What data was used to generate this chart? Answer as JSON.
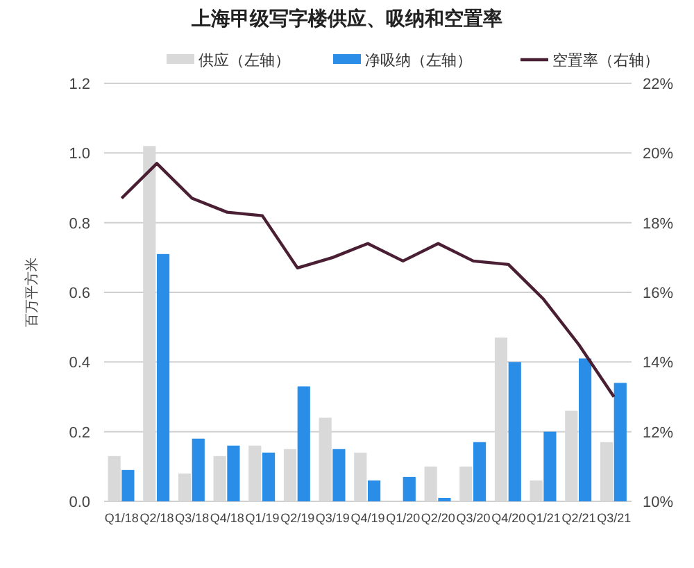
{
  "chart_data": {
    "type": "bar",
    "title": "上海甲级写字楼供应、吸纳和空置率",
    "ylabel": "百万平方米",
    "categories": [
      "Q1/18",
      "Q2/18",
      "Q3/18",
      "Q4/18",
      "Q1/19",
      "Q2/19",
      "Q3/19",
      "Q4/19",
      "Q1/20",
      "Q2/20",
      "Q3/20",
      "Q4/20",
      "Q1/21",
      "Q2/21",
      "Q3/21"
    ],
    "series": [
      {
        "name": "供应（左轴）",
        "color": "#d9d9d9",
        "values": [
          0.13,
          1.02,
          0.08,
          0.13,
          0.16,
          0.15,
          0.24,
          0.14,
          null,
          0.1,
          0.1,
          0.47,
          0.06,
          0.26,
          0.17
        ]
      },
      {
        "name": "净吸纳（左轴）",
        "color": "#2a8ee8",
        "values": [
          0.09,
          0.71,
          0.18,
          0.16,
          0.14,
          0.33,
          0.15,
          0.06,
          0.07,
          0.01,
          0.17,
          0.4,
          0.2,
          0.41,
          0.34
        ]
      },
      {
        "name": "空置率（右轴）",
        "type": "line",
        "axis": "y2",
        "color": "#4a1f33",
        "values": [
          18.7,
          19.7,
          18.7,
          18.3,
          18.2,
          16.7,
          17.0,
          17.4,
          16.9,
          17.4,
          16.9,
          16.8,
          15.8,
          14.5,
          13.0
        ]
      }
    ],
    "ylim": [
      0,
      1.2
    ],
    "yticks": [
      {
        "value": 0,
        "label": "0.0"
      },
      {
        "value": 0.2,
        "label": "0.2"
      },
      {
        "value": 0.4,
        "label": "0.4"
      },
      {
        "value": 0.6,
        "label": "0.6"
      },
      {
        "value": 0.8,
        "label": "0.8"
      },
      {
        "value": 1,
        "label": "1.0"
      },
      {
        "value": 1.2,
        "label": "1.2"
      }
    ],
    "y2lim": [
      10,
      22
    ],
    "y2ticks": [
      {
        "value": 10,
        "label": "10%"
      },
      {
        "value": 12,
        "label": "12%"
      },
      {
        "value": 14,
        "label": "14%"
      },
      {
        "value": 16,
        "label": "16%"
      },
      {
        "value": 18,
        "label": "18%"
      },
      {
        "value": 20,
        "label": "20%"
      },
      {
        "value": 22,
        "label": "22%"
      }
    ],
    "grid": "y",
    "legend": "top"
  }
}
